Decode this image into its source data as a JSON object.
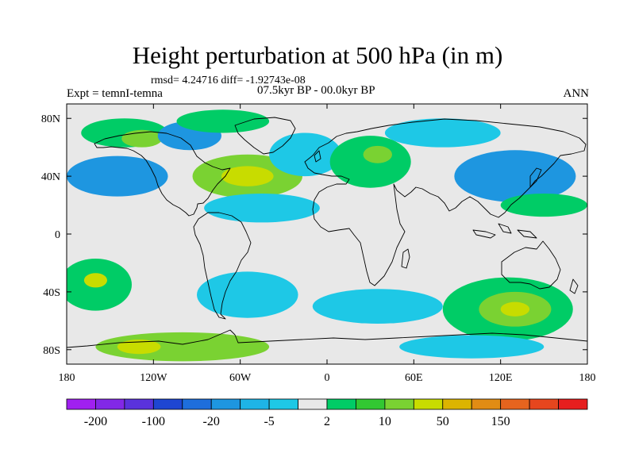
{
  "map": {
    "title": "Height perturbation at 500 hPa (in m)",
    "stats": "rmsd= 4.24716 diff= -1.92743e-08",
    "experiment": "Expt = temnI-temna",
    "period": "07.5kyr BP - 00.0kyr BP",
    "season": "ANN",
    "projection": "cylindrical-equidistant",
    "lon_range": [
      -180,
      180
    ],
    "lat_range": [
      -90,
      90
    ],
    "background_color": "#e8e8e8",
    "x_ticks": [
      {
        "lon": -180,
        "label": "180"
      },
      {
        "lon": -120,
        "label": "120W"
      },
      {
        "lon": -60,
        "label": "60W"
      },
      {
        "lon": 0,
        "label": "0"
      },
      {
        "lon": 60,
        "label": "60E"
      },
      {
        "lon": 120,
        "label": "120E"
      },
      {
        "lon": 180,
        "label": "180"
      }
    ],
    "y_ticks": [
      {
        "lat": 80,
        "label": "80N"
      },
      {
        "lat": 40,
        "label": "40N"
      },
      {
        "lat": 0,
        "label": "0"
      },
      {
        "lat": -40,
        "label": "40S"
      },
      {
        "lat": -80,
        "label": "80S"
      }
    ],
    "contour_regions": [
      {
        "lon": -145,
        "lat": 40,
        "rlon": 35,
        "rlat": 14,
        "color": "#1e96e0"
      },
      {
        "lon": -140,
        "lat": 70,
        "rlon": 30,
        "rlat": 10,
        "color": "#00cc66"
      },
      {
        "lon": -128,
        "lat": 66,
        "rlon": 14,
        "rlat": 6,
        "color": "#7ad232"
      },
      {
        "lon": -95,
        "lat": 68,
        "rlon": 22,
        "rlat": 10,
        "color": "#1e96e0"
      },
      {
        "lon": -72,
        "lat": 78,
        "rlon": 32,
        "rlat": 8,
        "color": "#00cc66"
      },
      {
        "lon": -55,
        "lat": 40,
        "rlon": 38,
        "rlat": 15,
        "color": "#7ad232"
      },
      {
        "lon": -55,
        "lat": 40,
        "rlon": 18,
        "rlat": 7,
        "color": "#c8dc00"
      },
      {
        "lon": -45,
        "lat": 18,
        "rlon": 40,
        "rlat": 10,
        "color": "#1ec8e6"
      },
      {
        "lon": -15,
        "lat": 55,
        "rlon": 25,
        "rlat": 15,
        "color": "#1ec8e6"
      },
      {
        "lon": 30,
        "lat": 50,
        "rlon": 28,
        "rlat": 18,
        "color": "#00cc66"
      },
      {
        "lon": 35,
        "lat": 55,
        "rlon": 10,
        "rlat": 6,
        "color": "#7ad232"
      },
      {
        "lon": 80,
        "lat": 70,
        "rlon": 40,
        "rlat": 10,
        "color": "#1ec8e6"
      },
      {
        "lon": 130,
        "lat": 40,
        "rlon": 42,
        "rlat": 18,
        "color": "#1e96e0"
      },
      {
        "lon": 150,
        "lat": 20,
        "rlon": 30,
        "rlat": 8,
        "color": "#00cc66"
      },
      {
        "lon": -160,
        "lat": -35,
        "rlon": 25,
        "rlat": 18,
        "color": "#00cc66"
      },
      {
        "lon": -160,
        "lat": -32,
        "rlon": 8,
        "rlat": 5,
        "color": "#c8dc00"
      },
      {
        "lon": -100,
        "lat": -78,
        "rlon": 60,
        "rlat": 10,
        "color": "#7ad232"
      },
      {
        "lon": -130,
        "lat": -78,
        "rlon": 15,
        "rlat": 5,
        "color": "#c8dc00"
      },
      {
        "lon": -55,
        "lat": -42,
        "rlon": 35,
        "rlat": 16,
        "color": "#1ec8e6"
      },
      {
        "lon": 35,
        "lat": -50,
        "rlon": 45,
        "rlat": 12,
        "color": "#1ec8e6"
      },
      {
        "lon": 125,
        "lat": -52,
        "rlon": 45,
        "rlat": 22,
        "color": "#00cc66"
      },
      {
        "lon": 130,
        "lat": -52,
        "rlon": 25,
        "rlat": 12,
        "color": "#7ad232"
      },
      {
        "lon": 130,
        "lat": -52,
        "rlon": 10,
        "rlat": 5,
        "color": "#c8dc00"
      },
      {
        "lon": 100,
        "lat": -78,
        "rlon": 50,
        "rlat": 8,
        "color": "#1ec8e6"
      }
    ]
  },
  "colorbar": {
    "colors": [
      "#a020f0",
      "#8228e6",
      "#5a32dc",
      "#1e46d2",
      "#1e6edc",
      "#1e96e0",
      "#1eb4e6",
      "#1ec8e6",
      "#e8e8e8",
      "#00cc66",
      "#32c832",
      "#7ad232",
      "#c8dc00",
      "#dcb400",
      "#e18c14",
      "#e6641e",
      "#e6461e",
      "#e61e1e"
    ],
    "labels": [
      {
        "boundary": 1,
        "label": "-200"
      },
      {
        "boundary": 3,
        "label": "-100"
      },
      {
        "boundary": 5,
        "label": "-20"
      },
      {
        "boundary": 7,
        "label": "-5"
      },
      {
        "boundary": 9,
        "label": "2"
      },
      {
        "boundary": 11,
        "label": "10"
      },
      {
        "boundary": 13,
        "label": "50"
      },
      {
        "boundary": 15,
        "label": "150"
      }
    ]
  }
}
